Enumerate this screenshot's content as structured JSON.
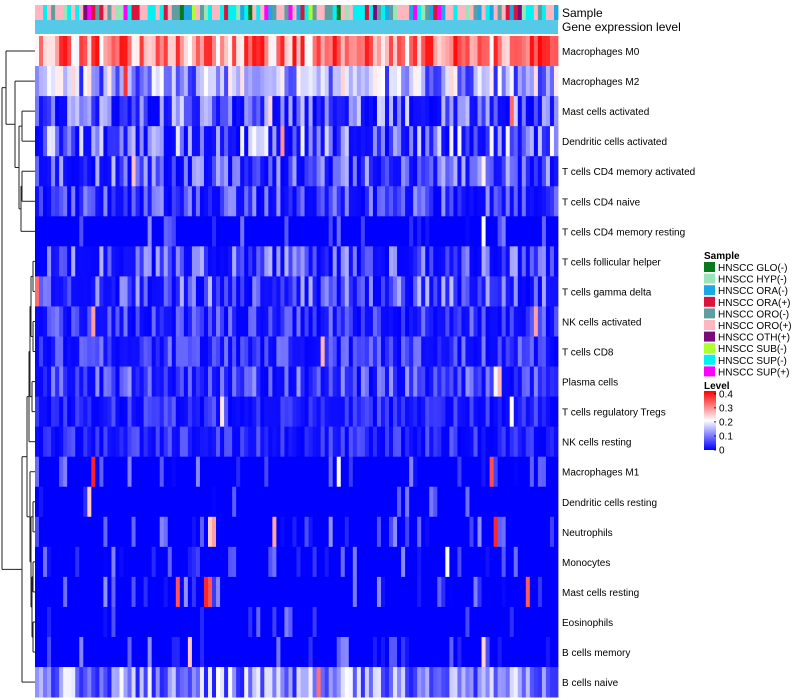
{
  "colors": {
    "low": "#0000FF",
    "mid": "#FFFFFF",
    "high": "#FF0000",
    "expression_track": "#56C8E8",
    "dendrogram": "#222222"
  },
  "chart_data": {
    "type": "heatmap",
    "title": "",
    "annotation_tracks": [
      "Sample",
      "Gene expression level"
    ],
    "rows": [
      "Macrophages M0",
      "Macrophages M2",
      "Mast cells activated",
      "Dendritic cells activated",
      "T cells CD4 memory activated",
      "T cells CD4 naive",
      "T cells CD4 memory resting",
      "T cells follicular helper",
      "T cells gamma delta",
      "NK cells activated",
      "T cells CD8",
      "Plasma cells",
      "T cells regulatory  Tregs",
      "NK cells resting",
      "Macrophages M1",
      "Dendritic cells resting",
      "Neutrophils",
      "Monocytes",
      "Mast cells resting",
      "Eosinophils",
      "B cells memory",
      "B cells naive"
    ],
    "row_mean_levels": [
      0.32,
      0.13,
      0.07,
      0.08,
      0.06,
      0.05,
      0.02,
      0.06,
      0.06,
      0.04,
      0.04,
      0.05,
      0.03,
      0.03,
      0.01,
      0.005,
      0.01,
      0.01,
      0.01,
      0.005,
      0.005,
      0.11
    ],
    "n_samples": 130,
    "sample_legend": {
      "title": "Sample",
      "entries": [
        {
          "label": "HNSCC GLO(-)",
          "color": "#067A1C"
        },
        {
          "label": "HNSCC HYP(-)",
          "color": "#98E5B8"
        },
        {
          "label": "HNSCC ORA(-)",
          "color": "#1CA8E5"
        },
        {
          "label": "HNSCC ORA(+)",
          "color": "#DC143C"
        },
        {
          "label": "HNSCC ORO(-)",
          "color": "#5F9EA0"
        },
        {
          "label": "HNSCC ORO(+)",
          "color": "#FFB6C1"
        },
        {
          "label": "HNSCC OTH(+)",
          "color": "#7B0A7B"
        },
        {
          "label": "HNSCC SUB(-)",
          "color": "#ADFF2F"
        },
        {
          "label": "HNSCC SUP(-)",
          "color": "#00F2F2"
        },
        {
          "label": "HNSCC SUP(+)",
          "color": "#FF00FF"
        }
      ]
    },
    "level_legend": {
      "title": "Level",
      "ticks": [
        "0.4",
        "0.3",
        "0.2",
        "0.1",
        "0"
      ],
      "range": [
        0,
        0.42
      ]
    }
  }
}
